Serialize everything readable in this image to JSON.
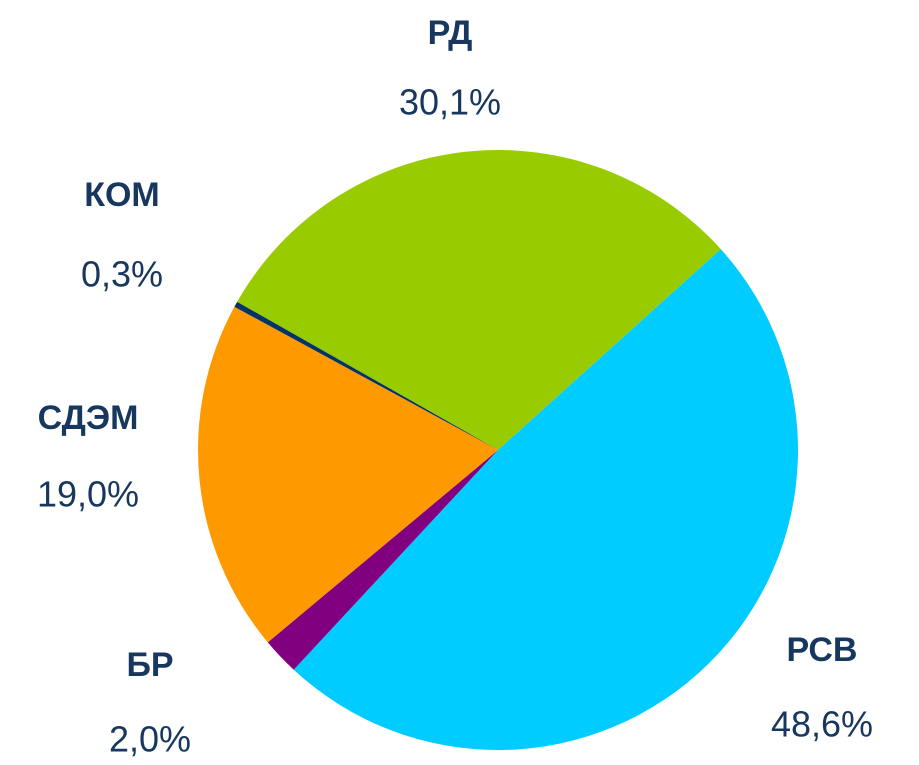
{
  "chart_data": {
    "type": "pie",
    "categories": [
      "РД",
      "РСВ",
      "БР",
      "СДЭМ",
      "КОМ"
    ],
    "values": [
      30.1,
      48.6,
      2.0,
      19.0,
      0.3
    ],
    "value_labels": [
      "30,1%",
      "48,6%",
      "2,0%",
      "19,0%",
      "0,3%"
    ],
    "colors": [
      "#99cc00",
      "#00ccff",
      "#800080",
      "#ff9900",
      "#003366"
    ]
  }
}
